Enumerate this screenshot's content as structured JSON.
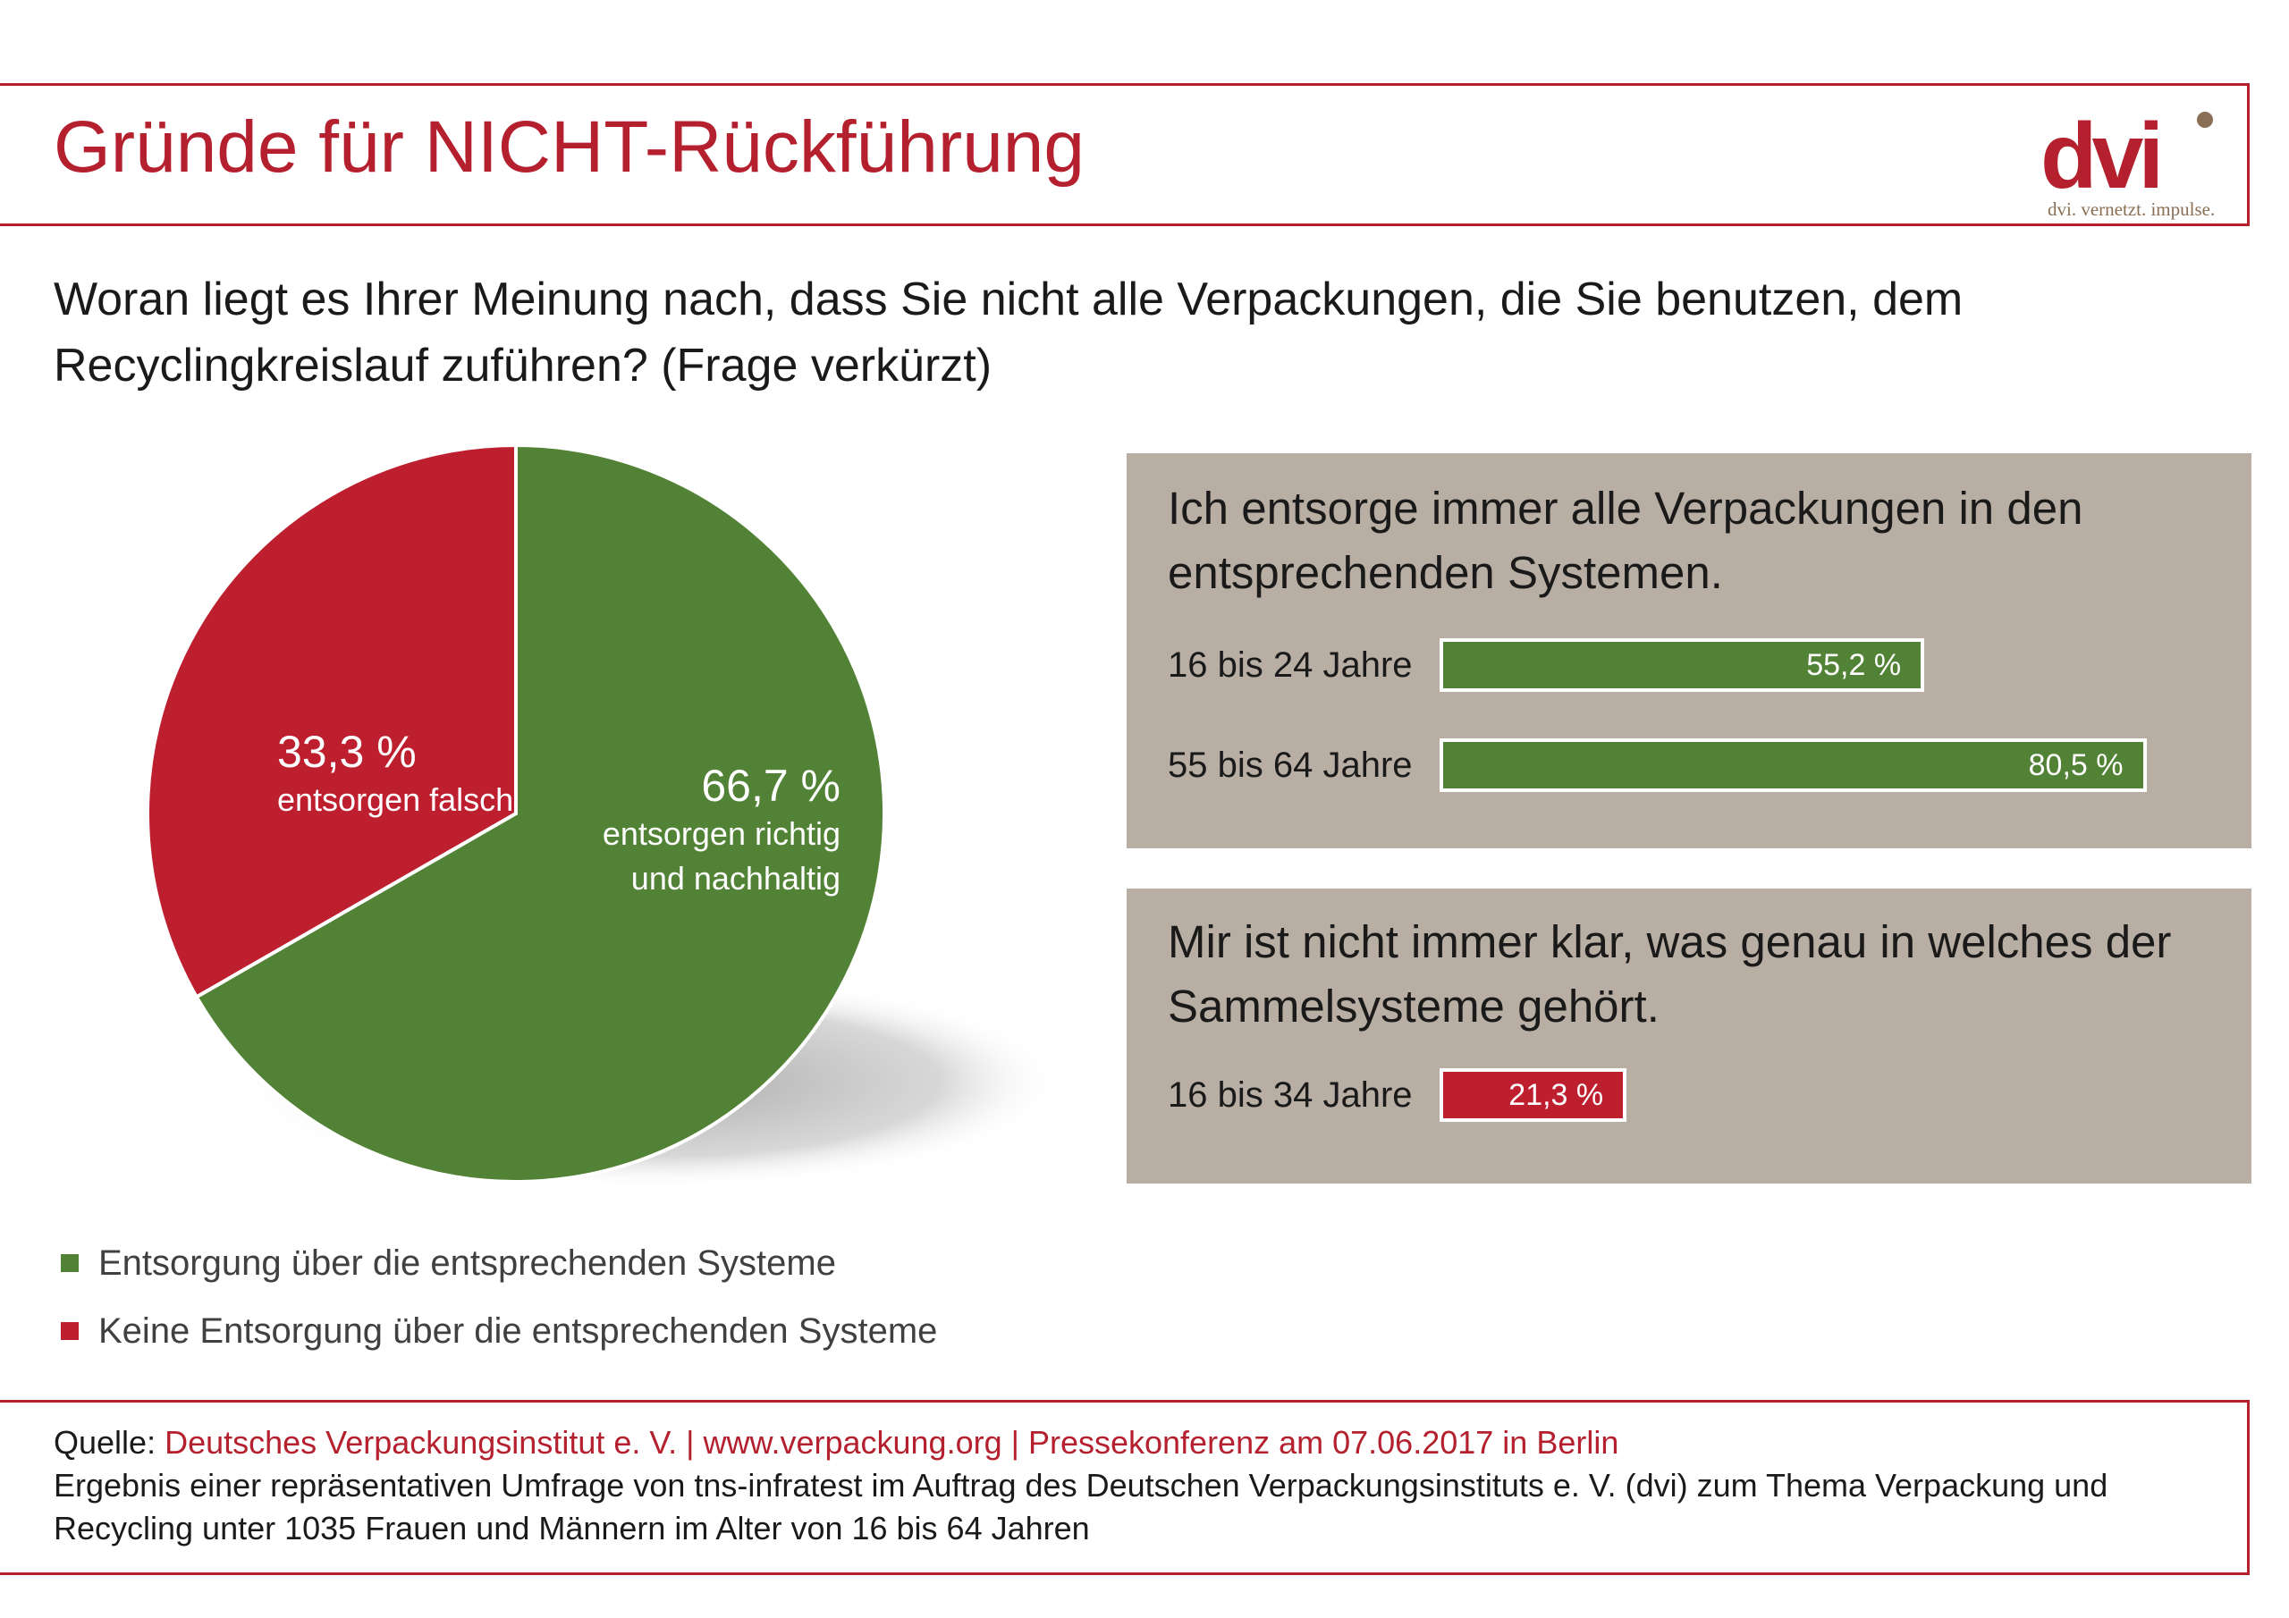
{
  "header": {
    "title": "Gründe für NICHT-Rückführung",
    "logo_text": "dvi",
    "logo_tagline": "dvi. vernetzt. impulse."
  },
  "question": "Woran liegt es Ihrer Meinung nach, dass Sie nicht alle Verpackungen, die Sie benutzen, dem Recyclingkreislauf zuführen? (Frage verkürzt)",
  "colors": {
    "green": "#528235",
    "red": "#bd1f2f",
    "brand_red": "#b5202e",
    "panel": "#b8aea3"
  },
  "chart_data": [
    {
      "type": "pie",
      "labels": [
        "Entsorgung über die entsprechenden Systeme",
        "Keine Entsorgung über die entsprechenden Systeme"
      ],
      "values": [
        66.7,
        33.3
      ],
      "colors": [
        "#528235",
        "#bd1f2f"
      ],
      "slice_labels": [
        {
          "pct": "66,7 %",
          "desc_lines": [
            "entsorgen richtig",
            "und nachhaltig"
          ]
        },
        {
          "pct": "33,3 %",
          "desc_lines": [
            "entsorgen falsch"
          ]
        }
      ],
      "legend_position": "bottom-left"
    },
    {
      "type": "bar",
      "title": "Ich entsorge immer alle Verpackungen in den entsprechenden Systemen.",
      "categories": [
        "16 bis 24 Jahre",
        "55 bis 64 Jahre"
      ],
      "values": [
        55.2,
        80.5
      ],
      "value_labels": [
        "55,2 %",
        "80,5 %"
      ],
      "color": "#528235"
    },
    {
      "type": "bar",
      "title": "Mir ist nicht immer klar, was genau in welches der Sammelsysteme gehört.",
      "categories": [
        "16 bis 34 Jahre"
      ],
      "values": [
        21.3
      ],
      "value_labels": [
        "21,3 %"
      ],
      "color": "#bd1f2f"
    }
  ],
  "footer": {
    "source_prefix": "Quelle: ",
    "source": "Deutsches Verpackungsinstitut e. V. | www.verpackung.org | Pressekonferenz am 07.06.2017 in Berlin",
    "note": "Ergebnis einer repräsentativen Umfrage von tns-infratest im Auftrag des Deutschen Verpackungsinstituts e. V. (dvi) zum Thema Verpackung und Recycling unter 1035 Frauen und Männern im Alter von 16 bis 64 Jahren"
  }
}
